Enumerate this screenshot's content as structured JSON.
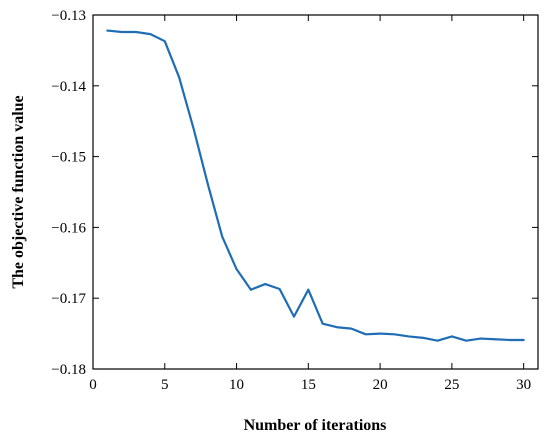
{
  "chart_data": {
    "type": "line",
    "xlabel": "Number of iterations",
    "ylabel": "The objective function value",
    "xlim": [
      0,
      31
    ],
    "ylim": [
      -0.18,
      -0.13
    ],
    "x_ticks": [
      0,
      5,
      10,
      15,
      20,
      25,
      30
    ],
    "y_ticks": [
      -0.13,
      -0.14,
      -0.15,
      -0.16,
      -0.17,
      -0.18
    ],
    "x_tick_labels": [
      "0",
      "5",
      "10",
      "15",
      "20",
      "25",
      "30"
    ],
    "y_tick_labels": [
      "−0.13",
      "−0.14",
      "−0.15",
      "−0.16",
      "−0.17",
      "−0.18"
    ],
    "grid": false,
    "series": [
      {
        "color": "#1f6db5",
        "x": [
          1,
          2,
          3,
          4,
          5,
          6,
          7,
          8,
          9,
          10,
          11,
          12,
          13,
          14,
          15,
          16,
          17,
          18,
          19,
          20,
          21,
          22,
          23,
          24,
          25,
          26,
          27,
          28,
          29,
          30
        ],
        "y": [
          -0.1322,
          -0.1324,
          -0.1324,
          -0.1327,
          -0.1337,
          -0.1388,
          -0.146,
          -0.1539,
          -0.1613,
          -0.1659,
          -0.1688,
          -0.168,
          -0.1687,
          -0.1726,
          -0.1688,
          -0.1736,
          -0.1741,
          -0.1743,
          -0.1751,
          -0.175,
          -0.1751,
          -0.1754,
          -0.1756,
          -0.176,
          -0.1754,
          -0.176,
          -0.1757,
          -0.1758,
          -0.1759,
          -0.1759
        ]
      }
    ]
  }
}
